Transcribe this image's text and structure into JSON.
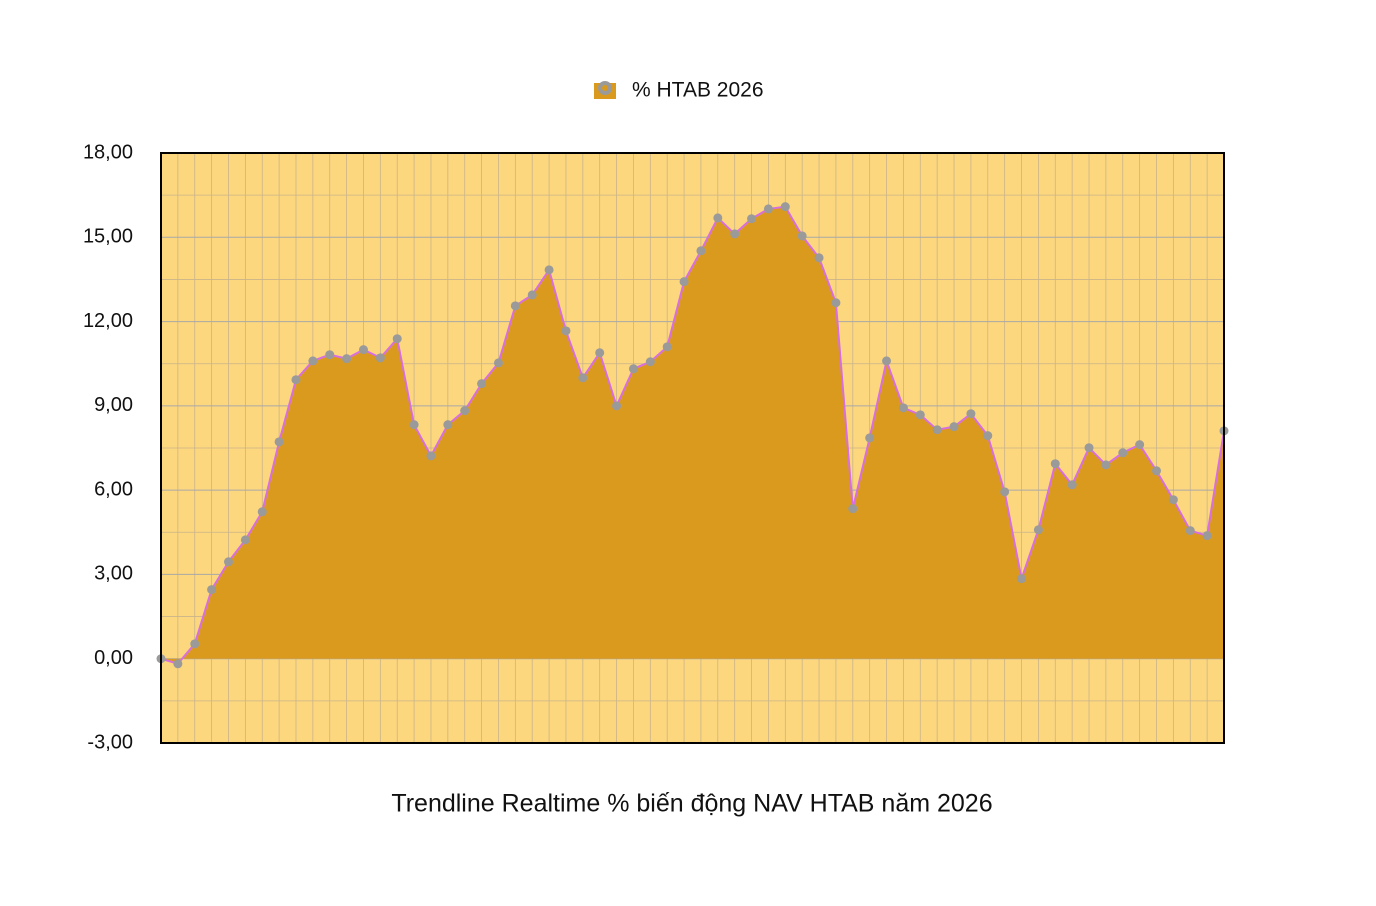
{
  "chart_data": {
    "type": "area",
    "title": "Trendline Realtime % biến động NAV HTAB năm 2026",
    "categories": [
      null,
      null,
      null,
      null,
      null,
      null,
      null,
      null,
      null,
      null,
      null,
      null,
      null,
      null,
      null,
      null,
      null,
      null,
      null,
      null,
      null,
      null,
      null,
      null,
      null,
      null,
      null,
      null,
      null,
      null,
      null,
      null,
      null,
      null,
      null,
      null,
      null,
      null,
      null,
      null,
      null,
      null,
      null,
      null,
      null,
      null,
      null,
      null,
      null,
      null,
      null,
      null,
      null,
      null,
      null,
      null,
      null,
      null,
      null,
      null,
      null,
      null,
      null,
      null
    ],
    "series": [
      {
        "name": "% HTAB 2026",
        "color": "#da9a1e",
        "line_color": "#d86fe0",
        "marker_color": "#9a9a9a",
        "values": [
          0,
          -0.18,
          0.53,
          2.46,
          3.45,
          4.23,
          5.23,
          7.72,
          9.93,
          10.6,
          10.82,
          10.68,
          11.0,
          10.71,
          11.39,
          8.33,
          7.22,
          8.33,
          8.83,
          9.79,
          10.53,
          12.56,
          12.95,
          13.84,
          11.67,
          10.0,
          10.89,
          9.0,
          10.32,
          10.57,
          11.1,
          13.42,
          14.52,
          15.69,
          15.12,
          15.66,
          16.01,
          16.09,
          15.05,
          14.27,
          12.67,
          5.34,
          7.86,
          10.6,
          8.93,
          8.68,
          8.15,
          8.26,
          8.72,
          7.94,
          5.94,
          2.85,
          4.59,
          6.94,
          6.19,
          7.51,
          6.9,
          7.33,
          7.62,
          6.69,
          5.66,
          4.56,
          4.38,
          8.11
        ]
      }
    ],
    "ylim": [
      -3,
      18
    ],
    "yticks": [
      {
        "value": -3,
        "label": "-3,00"
      },
      {
        "value": 0,
        "label": "0,00"
      },
      {
        "value": 3,
        "label": "3,00"
      },
      {
        "value": 6,
        "label": "6,00"
      },
      {
        "value": 9,
        "label": "9,00"
      },
      {
        "value": 12,
        "label": "12,00"
      },
      {
        "value": 15,
        "label": "15,00"
      },
      {
        "value": 18,
        "label": "18,00"
      }
    ],
    "grid": true,
    "plot_background": "#fdd77e",
    "legend_position": "top"
  }
}
